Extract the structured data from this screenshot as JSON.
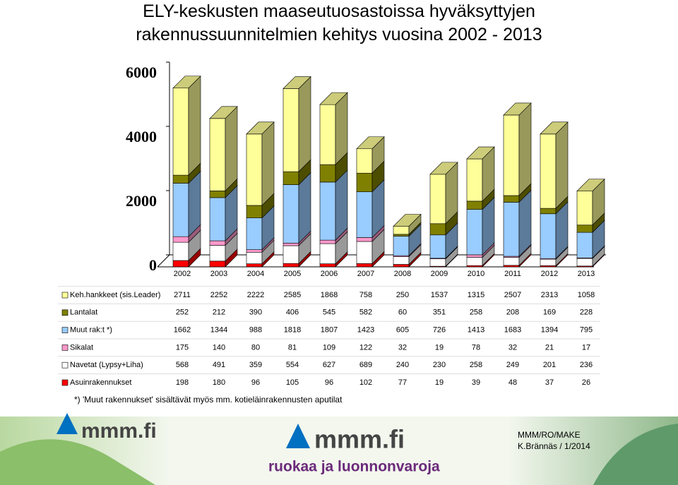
{
  "chart_data": {
    "type": "bar",
    "stacked": true,
    "title": "ELY-keskusten maaseutuosastoissa hyväksyttyjen rakennussuunnitelmien kehitys vuosina 2002 - 2013",
    "categories": [
      "2002",
      "2003",
      "2004",
      "2005",
      "2006",
      "2007",
      "2008",
      "2009",
      "2010",
      "2011",
      "2012",
      "2013"
    ],
    "series": [
      {
        "name": "Keh.hankkeet (sis.Leader)",
        "color": "#ffff99",
        "values": [
          2711,
          2252,
          2222,
          2585,
          1868,
          758,
          250,
          1537,
          1315,
          2507,
          2313,
          1058
        ]
      },
      {
        "name": "Lantalat",
        "color": "#808000",
        "values": [
          252,
          212,
          390,
          406,
          545,
          582,
          60,
          351,
          258,
          208,
          169,
          228
        ]
      },
      {
        "name": "Muut rak:t *)",
        "color": "#99ccff",
        "values": [
          1662,
          1344,
          988,
          1818,
          1807,
          1423,
          605,
          726,
          1413,
          1683,
          1394,
          795
        ]
      },
      {
        "name": "Sikalat",
        "color": "#ff99cc",
        "values": [
          175,
          140,
          80,
          81,
          109,
          122,
          32,
          19,
          78,
          32,
          21,
          17
        ]
      },
      {
        "name": "Navetat (Lypsy+Liha)",
        "color": "#ffffff",
        "values": [
          568,
          491,
          359,
          554,
          627,
          689,
          240,
          230,
          258,
          249,
          201,
          236
        ]
      },
      {
        "name": "Asuinrakennukset",
        "color": "#ff0000",
        "values": [
          198,
          180,
          96,
          105,
          96,
          102,
          77,
          19,
          39,
          48,
          37,
          26
        ]
      }
    ],
    "ylim": [
      0,
      6000
    ],
    "yticks": [
      0,
      2000,
      4000,
      6000
    ],
    "grid": false,
    "legend": "table",
    "footnote": "*) 'Muut rakennukset' sisältävät myös mm. kotieläinrakennusten aputilat"
  },
  "footer": {
    "logo_small": "mmm.fi",
    "logo_large": "mmm.fi",
    "slogan": "ruokaa ja luonnonvaroja",
    "credit_1": "MMM/RO/MAKE",
    "credit_2": "K.Brännäs / 1/2014"
  }
}
